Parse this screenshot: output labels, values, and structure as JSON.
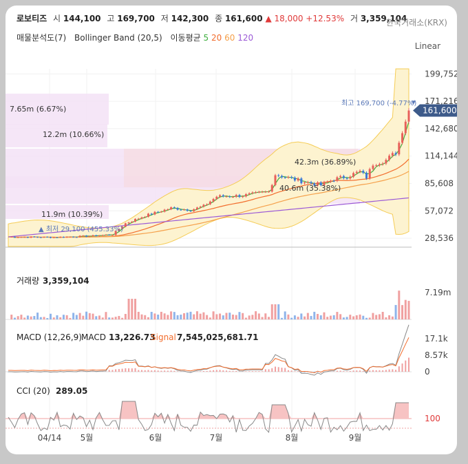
{
  "header": {
    "name": "로보티즈",
    "open_label": "시",
    "open": "144,100",
    "high_label": "고",
    "high": "169,700",
    "low_label": "저",
    "low": "142,300",
    "close_label": "종",
    "close": "161,600",
    "change": "▲ 18,000",
    "change_pct": "+12.53%",
    "volume_label": "거",
    "volume": "3,359,104",
    "exchange": "한국거래소(KRX)"
  },
  "indicators": {
    "vp": "매물분석도(7)",
    "bb": "Bollinger Band (20,5)",
    "ma_label": "이동평균",
    "ma5": "5",
    "ma20": "20",
    "ma60": "60",
    "ma120": "120"
  },
  "scale_mode": "Linear",
  "colors": {
    "up": "#e8605a",
    "down": "#3d78d8",
    "ma5": "#3cae3c",
    "ma20": "#f26d2d",
    "ma60": "#f5a04a",
    "ma120": "#9b59d6",
    "bb_fill": "#fdf3d0",
    "bb_line": "#f5cc55",
    "vp_fill": "#f3e2f6"
  },
  "chart_data": [
    {
      "type": "candlestick",
      "title": "",
      "x_ticks": [
        "04/14",
        "5월",
        "6월",
        "7월",
        "8월",
        "9월"
      ],
      "y_ticks": [
        "199,752",
        "171,216",
        "142,680",
        "114,144",
        "85,608",
        "57,072",
        "28,536"
      ],
      "ylim": [
        20000,
        205000
      ],
      "last_price": "161,600",
      "high_marker": "최고 169,700 (-4.77%)",
      "low_marker": "최저 29,100 (455.33%)",
      "volume_profile": [
        "7.65m (6.67%)",
        "12.2m (10.66%)",
        "42.3m (36.89%)",
        "40.6m (35.38%)",
        "11.9m (10.39%)"
      ],
      "indicators": [
        "Bollinger Band (20,5)",
        "MA 5",
        "MA 20",
        "MA 60",
        "MA 120"
      ]
    },
    {
      "type": "bar",
      "title": "거래량",
      "value": "3,359,104",
      "y_ticks": [
        "7.19m"
      ]
    },
    {
      "type": "line",
      "title": "MACD (12,26,9)",
      "macd_label": "MACD",
      "macd": "13,226.73",
      "signal_label": "Signal",
      "signal": "7,545,025,681.71",
      "y_ticks": [
        "17.1k",
        "8.57k",
        "0"
      ]
    },
    {
      "type": "line",
      "title": "CCI (20)",
      "value": "289.05",
      "y_ticks": [
        "100"
      ]
    }
  ]
}
